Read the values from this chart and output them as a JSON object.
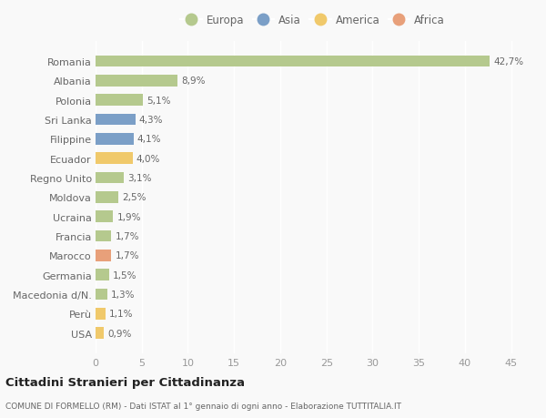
{
  "countries": [
    "Romania",
    "Albania",
    "Polonia",
    "Sri Lanka",
    "Filippine",
    "Ecuador",
    "Regno Unito",
    "Moldova",
    "Ucraina",
    "Francia",
    "Marocco",
    "Germania",
    "Macedonia d/N.",
    "Perù",
    "USA"
  ],
  "values": [
    42.7,
    8.9,
    5.1,
    4.3,
    4.1,
    4.0,
    3.1,
    2.5,
    1.9,
    1.7,
    1.7,
    1.5,
    1.3,
    1.1,
    0.9
  ],
  "labels": [
    "42,7%",
    "8,9%",
    "5,1%",
    "4,3%",
    "4,1%",
    "4,0%",
    "3,1%",
    "2,5%",
    "1,9%",
    "1,7%",
    "1,7%",
    "1,5%",
    "1,3%",
    "1,1%",
    "0,9%"
  ],
  "continents": [
    "Europa",
    "Europa",
    "Europa",
    "Asia",
    "Asia",
    "America",
    "Europa",
    "Europa",
    "Europa",
    "Europa",
    "Africa",
    "Europa",
    "Europa",
    "America",
    "America"
  ],
  "continent_colors": {
    "Europa": "#b5c98e",
    "Asia": "#7b9fc7",
    "America": "#f0c96b",
    "Africa": "#e8a07a"
  },
  "legend_order": [
    "Europa",
    "Asia",
    "America",
    "Africa"
  ],
  "xlim": [
    0,
    47
  ],
  "xticks": [
    0,
    5,
    10,
    15,
    20,
    25,
    30,
    35,
    40,
    45
  ],
  "title": "Cittadini Stranieri per Cittadinanza",
  "subtitle": "COMUNE DI FORMELLO (RM) - Dati ISTAT al 1° gennaio di ogni anno - Elaborazione TUTTITALIA.IT",
  "bg_color": "#f9f9f9",
  "grid_color": "#ffffff",
  "bar_height": 0.6,
  "label_fontsize": 7.5,
  "ytick_fontsize": 8,
  "xtick_fontsize": 8
}
